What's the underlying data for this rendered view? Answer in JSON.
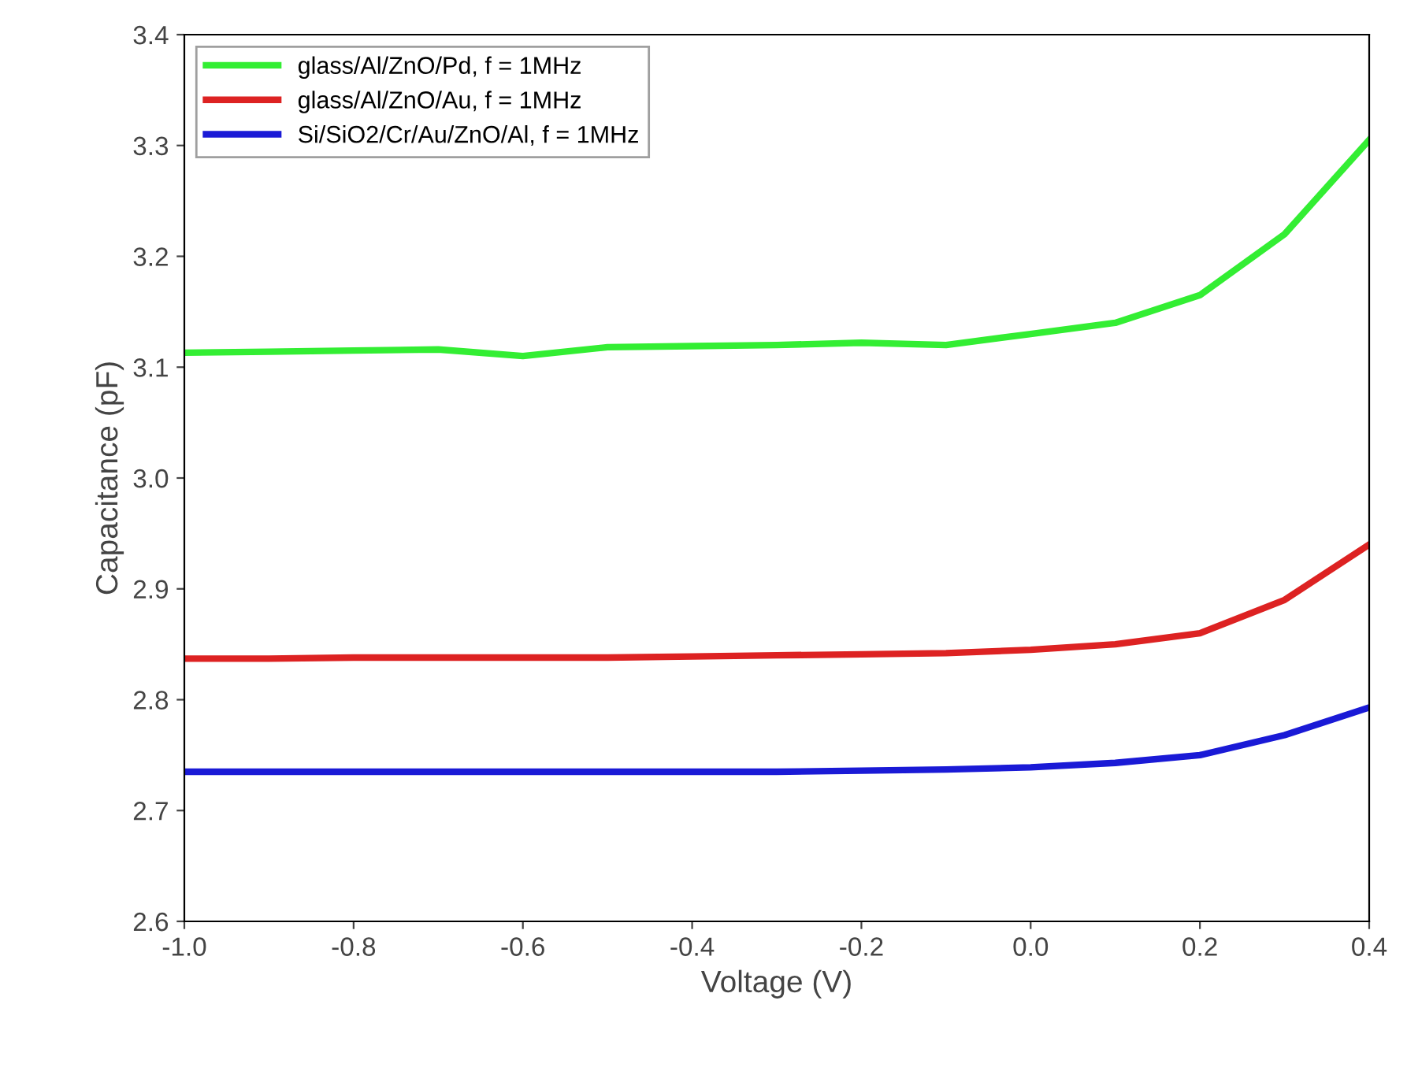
{
  "chart_data": {
    "type": "line",
    "xlabel": "Voltage (V)",
    "ylabel": "Capacitance (pF)",
    "x": [
      -1.0,
      -0.9,
      -0.8,
      -0.7,
      -0.6,
      -0.5,
      -0.4,
      -0.3,
      -0.2,
      -0.1,
      0.0,
      0.1,
      0.2,
      0.3,
      0.4
    ],
    "series": [
      {
        "name": "glass/Al/ZnO/Pd, f = 1MHz",
        "color": "#33ee33",
        "values": [
          3.113,
          3.114,
          3.115,
          3.116,
          3.11,
          3.118,
          3.119,
          3.12,
          3.122,
          3.12,
          3.13,
          3.14,
          3.165,
          3.22,
          3.305
        ]
      },
      {
        "name": "glass/Al/ZnO/Au, f = 1MHz",
        "color": "#dd2222",
        "values": [
          2.837,
          2.837,
          2.838,
          2.838,
          2.838,
          2.838,
          2.839,
          2.84,
          2.841,
          2.842,
          2.845,
          2.85,
          2.86,
          2.89,
          2.94
        ]
      },
      {
        "name": "Si/SiO2/Cr/Au/ZnO/Al, f = 1MHz",
        "color": "#1a1ad6",
        "values": [
          2.735,
          2.735,
          2.735,
          2.735,
          2.735,
          2.735,
          2.735,
          2.735,
          2.736,
          2.737,
          2.739,
          2.743,
          2.75,
          2.768,
          2.793
        ]
      }
    ],
    "xlim": [
      -1.0,
      0.4
    ],
    "ylim": [
      2.6,
      3.4
    ],
    "xticks": [
      {
        "value": -1.0,
        "label": "-1.0"
      },
      {
        "value": -0.8,
        "label": "-0.8"
      },
      {
        "value": -0.6,
        "label": "-0.6"
      },
      {
        "value": -0.4,
        "label": "-0.4"
      },
      {
        "value": -0.2,
        "label": "-0.2"
      },
      {
        "value": 0.0,
        "label": "0.0"
      },
      {
        "value": 0.2,
        "label": "0.2"
      },
      {
        "value": 0.4,
        "label": "0.4"
      }
    ],
    "yticks": [
      {
        "value": 2.6,
        "label": "2.6"
      },
      {
        "value": 2.7,
        "label": "2.7"
      },
      {
        "value": 2.8,
        "label": "2.8"
      },
      {
        "value": 2.9,
        "label": "2.9"
      },
      {
        "value": 3.0,
        "label": "3.0"
      },
      {
        "value": 3.1,
        "label": "3.1"
      },
      {
        "value": 3.2,
        "label": "3.2"
      },
      {
        "value": 3.3,
        "label": "3.3"
      },
      {
        "value": 3.4,
        "label": "3.4"
      }
    ],
    "legend": "top left",
    "grid": false,
    "marker": "none",
    "line_style": "solid"
  }
}
